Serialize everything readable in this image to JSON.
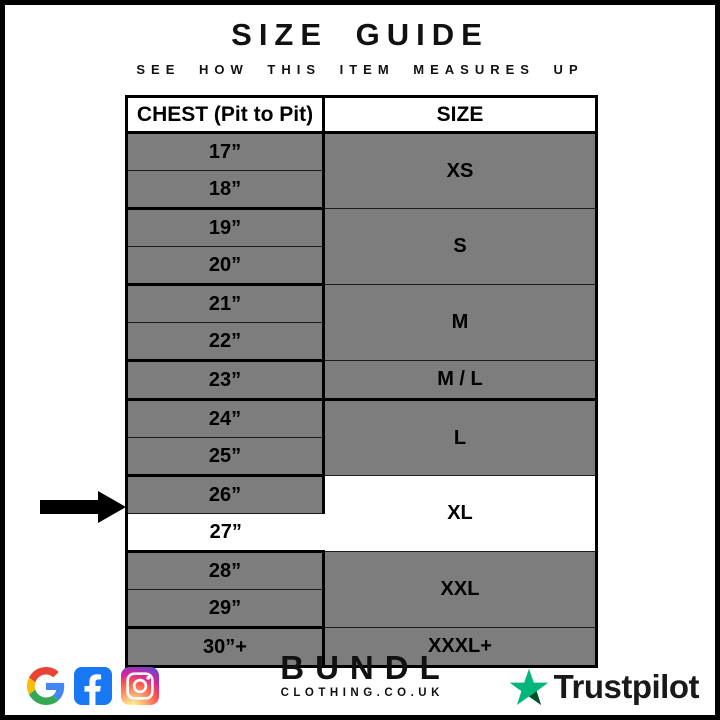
{
  "header": {
    "title": "SIZE GUIDE",
    "subtitle": "SEE HOW THIS ITEM MEASURES UP"
  },
  "table": {
    "columns": [
      "CHEST (Pit to Pit)",
      "SIZE"
    ],
    "groups": [
      {
        "size": "XS",
        "highlighted": false,
        "rows": [
          {
            "chest": "17”",
            "highlighted": false
          },
          {
            "chest": "18”",
            "highlighted": false
          }
        ]
      },
      {
        "size": "S",
        "highlighted": false,
        "rows": [
          {
            "chest": "19”",
            "highlighted": false
          },
          {
            "chest": "20”",
            "highlighted": false
          }
        ]
      },
      {
        "size": "M",
        "highlighted": false,
        "rows": [
          {
            "chest": "21”",
            "highlighted": false
          },
          {
            "chest": "22”",
            "highlighted": false
          }
        ]
      },
      {
        "size": "M / L",
        "highlighted": false,
        "rows": [
          {
            "chest": "23”",
            "highlighted": false
          }
        ]
      },
      {
        "size": "L",
        "highlighted": false,
        "rows": [
          {
            "chest": "24”",
            "highlighted": false
          },
          {
            "chest": "25”",
            "highlighted": false
          }
        ]
      },
      {
        "size": "XL",
        "highlighted": true,
        "rows": [
          {
            "chest": "26”",
            "highlighted": false
          },
          {
            "chest": "27”",
            "highlighted": true
          }
        ]
      },
      {
        "size": "XXL",
        "highlighted": false,
        "rows": [
          {
            "chest": "28”",
            "highlighted": false
          },
          {
            "chest": "29”",
            "highlighted": false
          }
        ]
      },
      {
        "size": "XXXL+",
        "highlighted": false,
        "rows": [
          {
            "chest": "30”+",
            "highlighted": false
          }
        ]
      }
    ],
    "row_color": "#7d7d7d",
    "highlight_color": "#ffffff",
    "selected_chest": "27”",
    "selected_size": "XL"
  },
  "annotation": {
    "arrow_points_to": "27” row",
    "arrow_color": "#000000"
  },
  "footer": {
    "brand": {
      "name": "BUNDL",
      "domain": "CLOTHING.CO.UK"
    },
    "social_icons": [
      "google-icon",
      "facebook-icon",
      "instagram-icon"
    ],
    "trustpilot": {
      "label": "Trustpilot"
    }
  },
  "colors": {
    "frame": "#000000",
    "facebook_blue": "#1877F2",
    "google_blue": "#4285F4",
    "google_red": "#EA4335",
    "google_yellow": "#FBBC05",
    "google_green": "#34A853",
    "trustpilot_green": "#00B67A",
    "trustpilot_dark_green": "#005128"
  }
}
